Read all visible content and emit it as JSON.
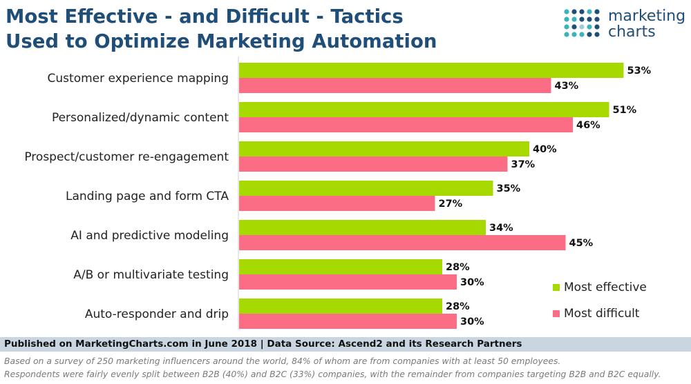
{
  "header": {
    "title_line1": "Most Effective - and Difficult - Tactics",
    "title_line2": "Used to Optimize Marketing Automation"
  },
  "logo": {
    "line1": "marketing",
    "line2": "charts",
    "colors": [
      "#3bb3b8",
      "#1f4e79",
      "#a3c8d8"
    ]
  },
  "chart_data": {
    "type": "bar",
    "orientation": "horizontal",
    "title": "Most Effective - and Difficult - Tactics Used to Optimize Marketing Automation",
    "categories": [
      "Customer experience mapping",
      "Personalized/dynamic content",
      "Prospect/customer re-engagement",
      "Landing page and form CTA",
      "AI and predictive modeling",
      "A/B or multivariate testing",
      "Auto-responder and drip"
    ],
    "series": [
      {
        "name": "Most effective",
        "color": "#a5d900",
        "values": [
          53,
          51,
          40,
          35,
          34,
          28,
          28
        ]
      },
      {
        "name": "Most difficult",
        "color": "#fa6d84",
        "values": [
          43,
          46,
          37,
          27,
          45,
          30,
          30
        ]
      }
    ],
    "value_suffix": "%",
    "xlim": [
      0,
      60
    ],
    "grid": false,
    "legend_position": "bottom-right"
  },
  "footer": {
    "published": "Published on MarketingCharts.com in June 2018 | Data Source: Ascend2 and its Research Partners",
    "note_line1": "Based on a survey of 250 marketing influencers around the world, 84% of whom are from companies with at least 50 employees.",
    "note_line2": "Respondents were fairly evenly split between B2B (40%) and B2C (33%) companies, with the remainder from companies targeting B2B and B2C equally."
  }
}
